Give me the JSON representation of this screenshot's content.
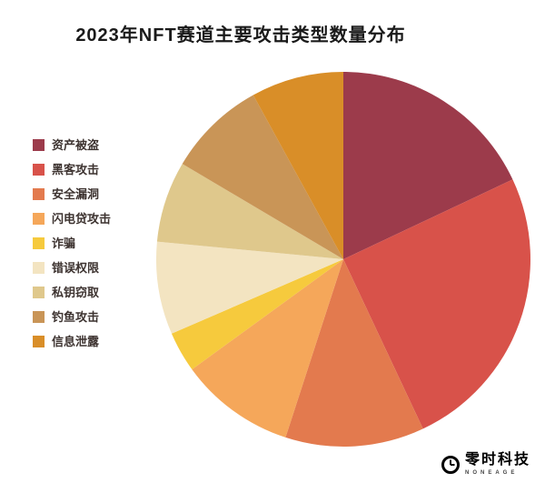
{
  "chart_data": {
    "type": "pie",
    "title": "2023年NFT赛道主要攻击类型数量分布",
    "legend_position": "left",
    "start_angle_deg": 0,
    "direction": "clockwise",
    "labels": [
      "资产被盗",
      "黑客攻击",
      "安全漏洞",
      "闪电贷攻击",
      "诈骗",
      "错误权限",
      "私钥窃取",
      "钓鱼攻击",
      "信息泄露"
    ],
    "values": [
      18,
      25,
      12,
      10,
      3.5,
      8,
      7,
      8.5,
      8
    ],
    "colors": [
      "#9c3b4b",
      "#d8524a",
      "#e37a4e",
      "#f5a75a",
      "#f6ca3d",
      "#f3e4c1",
      "#dfc88c",
      "#c99557",
      "#d98e28"
    ]
  },
  "logo": {
    "name": "零时科技",
    "subtitle": "NONEAGE"
  }
}
